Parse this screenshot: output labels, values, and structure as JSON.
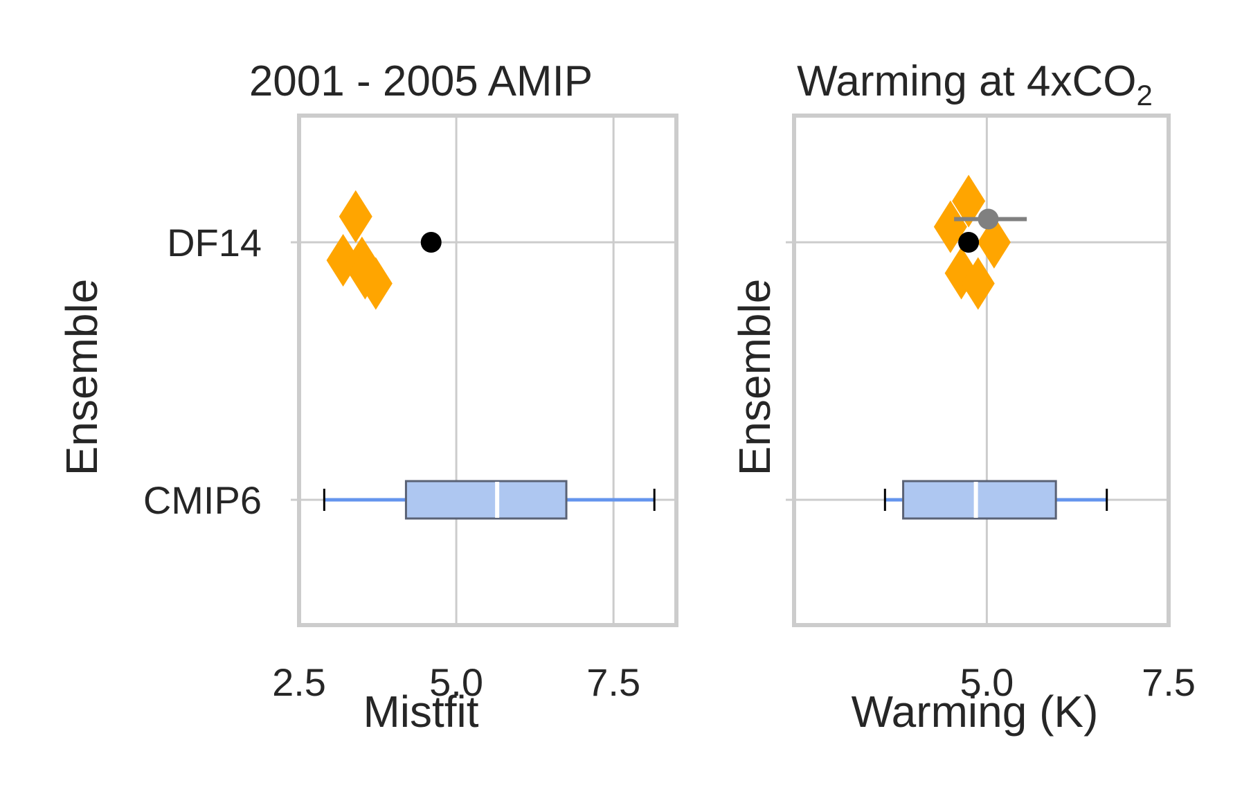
{
  "colors": {
    "grid": "#cccccc",
    "text": "#262626",
    "diamond": "#ffa500",
    "best_point": "#000000",
    "mean_point": "#808080",
    "box_fill": "#aec7f1",
    "box_edge": "#5a6275",
    "whisker": "#6495ed"
  },
  "chart_data": [
    {
      "type": "box",
      "title": "2001 - 2005 AMIP",
      "xlabel": "Mistfit",
      "ylabel": "Ensemble",
      "xlim": [
        2.5,
        8.5
      ],
      "xticks": [
        2.5,
        5.0,
        7.5
      ],
      "xtick_labels": [
        "2.5",
        "5.0",
        "7.5"
      ],
      "categories": [
        "DF14",
        "CMIP6"
      ],
      "show_ytick_labels": true,
      "grid": true,
      "diamonds": [
        {
          "category": "DF14",
          "x": 3.4,
          "offset": 0.1
        },
        {
          "category": "DF14",
          "x": 3.2,
          "offset": -0.07
        },
        {
          "category": "DF14",
          "x": 3.5,
          "offset": -0.08
        },
        {
          "category": "DF14",
          "x": 3.55,
          "offset": -0.12
        },
        {
          "category": "DF14",
          "x": 3.72,
          "offset": -0.16
        }
      ],
      "points": [
        {
          "category": "DF14",
          "x": 4.6,
          "color_key": "best_point"
        }
      ],
      "box": {
        "category": "CMIP6",
        "whislo": 2.9,
        "q1": 4.2,
        "median": 5.65,
        "q3": 6.75,
        "whishi": 8.15
      }
    },
    {
      "type": "box",
      "title_main": "Warming at 4xCO",
      "title_sub": "2",
      "xlabel": "Warming (K)",
      "ylabel": "Ensemble",
      "xlim": [
        2.35,
        7.5
      ],
      "xticks": [
        5.0,
        7.5
      ],
      "xtick_labels": [
        "5.0",
        "7.5"
      ],
      "categories": [
        "DF14",
        "CMIP6"
      ],
      "show_ytick_labels": false,
      "grid": true,
      "diamonds": [
        {
          "category": "DF14",
          "x": 4.75,
          "offset": 0.16
        },
        {
          "category": "DF14",
          "x": 4.5,
          "offset": 0.06
        },
        {
          "category": "DF14",
          "x": 5.1,
          "offset": 0.0
        },
        {
          "category": "DF14",
          "x": 4.65,
          "offset": -0.12
        },
        {
          "category": "DF14",
          "x": 4.88,
          "offset": -0.16
        }
      ],
      "errorbar": {
        "category": "DF14",
        "x": 5.02,
        "xerr_low": 4.55,
        "xerr_high": 5.55,
        "offset": 0.09
      },
      "points": [
        {
          "category": "DF14",
          "x": 4.75,
          "color_key": "best_point"
        }
      ],
      "box": {
        "category": "CMIP6",
        "whislo": 3.6,
        "q1": 3.85,
        "median": 4.85,
        "q3": 5.95,
        "whishi": 6.65
      }
    }
  ]
}
